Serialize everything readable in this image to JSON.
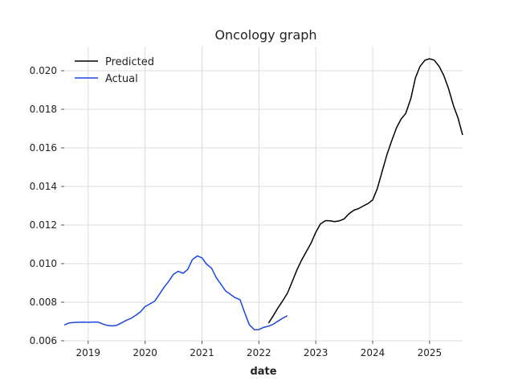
{
  "chart_data": {
    "type": "line",
    "title": "Oncology graph",
    "xlabel": "date",
    "ylabel": "",
    "xlim": [
      2018.58,
      2025.58
    ],
    "ylim": [
      0.006,
      0.02125
    ],
    "x_ticks": [
      2019,
      2020,
      2021,
      2022,
      2023,
      2024,
      2025
    ],
    "x_tick_labels": [
      "2019",
      "2020",
      "2021",
      "2022",
      "2023",
      "2024",
      "2025"
    ],
    "y_ticks": [
      0.006,
      0.008,
      0.01,
      0.012,
      0.014,
      0.016,
      0.018,
      0.02
    ],
    "y_tick_labels": [
      "0.006",
      "0.008",
      "0.010",
      "0.012",
      "0.014",
      "0.016",
      "0.018",
      "0.020"
    ],
    "grid": true,
    "legend_position": "top-left",
    "series": [
      {
        "name": "Predicted",
        "color": "#000000",
        "x": [
          2022.17,
          2022.25,
          2022.33,
          2022.42,
          2022.5,
          2022.58,
          2022.67,
          2022.75,
          2022.83,
          2022.92,
          2023.0,
          2023.08,
          2023.17,
          2023.25,
          2023.33,
          2023.42,
          2023.5,
          2023.58,
          2023.67,
          2023.75,
          2023.83,
          2023.92,
          2024.0,
          2024.08,
          2024.17,
          2024.25,
          2024.33,
          2024.42,
          2024.5,
          2024.58,
          2024.67,
          2024.75,
          2024.83,
          2024.92,
          2025.0,
          2025.08,
          2025.17,
          2025.25,
          2025.33,
          2025.42,
          2025.5,
          2025.58
        ],
        "y": [
          0.00692,
          0.00728,
          0.00768,
          0.00808,
          0.00846,
          0.00902,
          0.00968,
          0.01018,
          0.0106,
          0.01108,
          0.01162,
          0.01205,
          0.01223,
          0.01222,
          0.01218,
          0.01222,
          0.01232,
          0.01258,
          0.01277,
          0.01285,
          0.01298,
          0.01312,
          0.0133,
          0.01388,
          0.01482,
          0.01565,
          0.01633,
          0.01705,
          0.0175,
          0.01778,
          0.01855,
          0.01962,
          0.02022,
          0.02055,
          0.02062,
          0.02055,
          0.02022,
          0.01975,
          0.0191,
          0.01818,
          0.01755,
          0.01667
        ]
      },
      {
        "name": "Actual",
        "color": "#1a47e0",
        "x": [
          2018.58,
          2018.67,
          2018.75,
          2018.83,
          2018.92,
          2019.0,
          2019.08,
          2019.17,
          2019.25,
          2019.33,
          2019.42,
          2019.5,
          2019.58,
          2019.67,
          2019.75,
          2019.83,
          2019.92,
          2020.0,
          2020.08,
          2020.17,
          2020.25,
          2020.33,
          2020.42,
          2020.5,
          2020.58,
          2020.67,
          2020.75,
          2020.83,
          2020.92,
          2021.0,
          2021.08,
          2021.17,
          2021.25,
          2021.33,
          2021.42,
          2021.5,
          2021.58,
          2021.67,
          2021.75,
          2021.83,
          2021.92,
          2022.0,
          2022.08,
          2022.17,
          2022.25,
          2022.33,
          2022.42,
          2022.5
        ],
        "y": [
          0.00682,
          0.00693,
          0.00695,
          0.00696,
          0.00697,
          0.00696,
          0.00697,
          0.00697,
          0.00688,
          0.0068,
          0.00677,
          0.0068,
          0.00692,
          0.00706,
          0.00716,
          0.00731,
          0.0075,
          0.00777,
          0.0079,
          0.00806,
          0.0084,
          0.00876,
          0.0091,
          0.00945,
          0.0096,
          0.0095,
          0.0097,
          0.0102,
          0.0104,
          0.0103,
          0.00998,
          0.00976,
          0.00928,
          0.00894,
          0.00857,
          0.00841,
          0.00824,
          0.00813,
          0.00747,
          0.00684,
          0.00657,
          0.00658,
          0.00669,
          0.00676,
          0.00685,
          0.00701,
          0.00717,
          0.0073
        ]
      }
    ]
  }
}
